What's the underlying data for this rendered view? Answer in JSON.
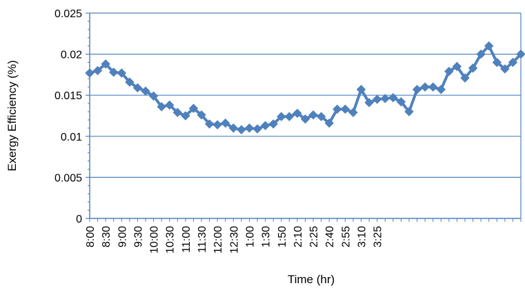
{
  "chart_data": {
    "type": "line",
    "title": "",
    "xlabel": "Time (hr)",
    "ylabel": "Exergy Efficiency (%)",
    "ylim": [
      0,
      0.025
    ],
    "yticks": [
      "0",
      "0.005",
      "0.01",
      "0.015",
      "0.02",
      "0.025"
    ],
    "yticks_values": [
      0,
      0.005,
      0.01,
      0.015,
      0.02,
      0.025
    ],
    "grid": "horizontal",
    "legend": "none",
    "x_tick_labels": [
      "8:00",
      "8:30",
      "9:00",
      "9:30",
      "10:00",
      "10:30",
      "11:00",
      "11:30",
      "12:00",
      "12:30",
      "1:00",
      "1:30",
      "1:50",
      "2:10",
      "2:25",
      "2:40",
      "2:55",
      "3:10",
      "3:25"
    ],
    "x_tick_label_point_index": [
      0,
      2,
      4,
      6,
      8,
      10,
      12,
      14,
      16,
      18,
      20,
      22,
      24,
      26,
      28,
      30,
      32,
      34,
      36
    ],
    "series": [
      {
        "name": "",
        "color": "#4F81BD",
        "marker": "diamond",
        "values": [
          0.0177,
          0.018,
          0.0188,
          0.0178,
          0.0177,
          0.0166,
          0.0159,
          0.0155,
          0.0149,
          0.0136,
          0.0138,
          0.0129,
          0.0125,
          0.0134,
          0.0126,
          0.0115,
          0.0114,
          0.0116,
          0.011,
          0.0108,
          0.011,
          0.0109,
          0.0113,
          0.0115,
          0.0124,
          0.0124,
          0.0128,
          0.0121,
          0.0126,
          0.0124,
          0.0116,
          0.0133,
          0.0133,
          0.0129,
          0.0157,
          0.0141,
          0.0145,
          0.0146,
          0.0147,
          0.0142,
          0.013,
          0.0157,
          0.016,
          0.016,
          0.0157,
          0.0179,
          0.0185,
          0.0171,
          0.0183,
          0.02,
          0.021,
          0.019,
          0.0182,
          0.019,
          0.02
        ]
      }
    ]
  }
}
